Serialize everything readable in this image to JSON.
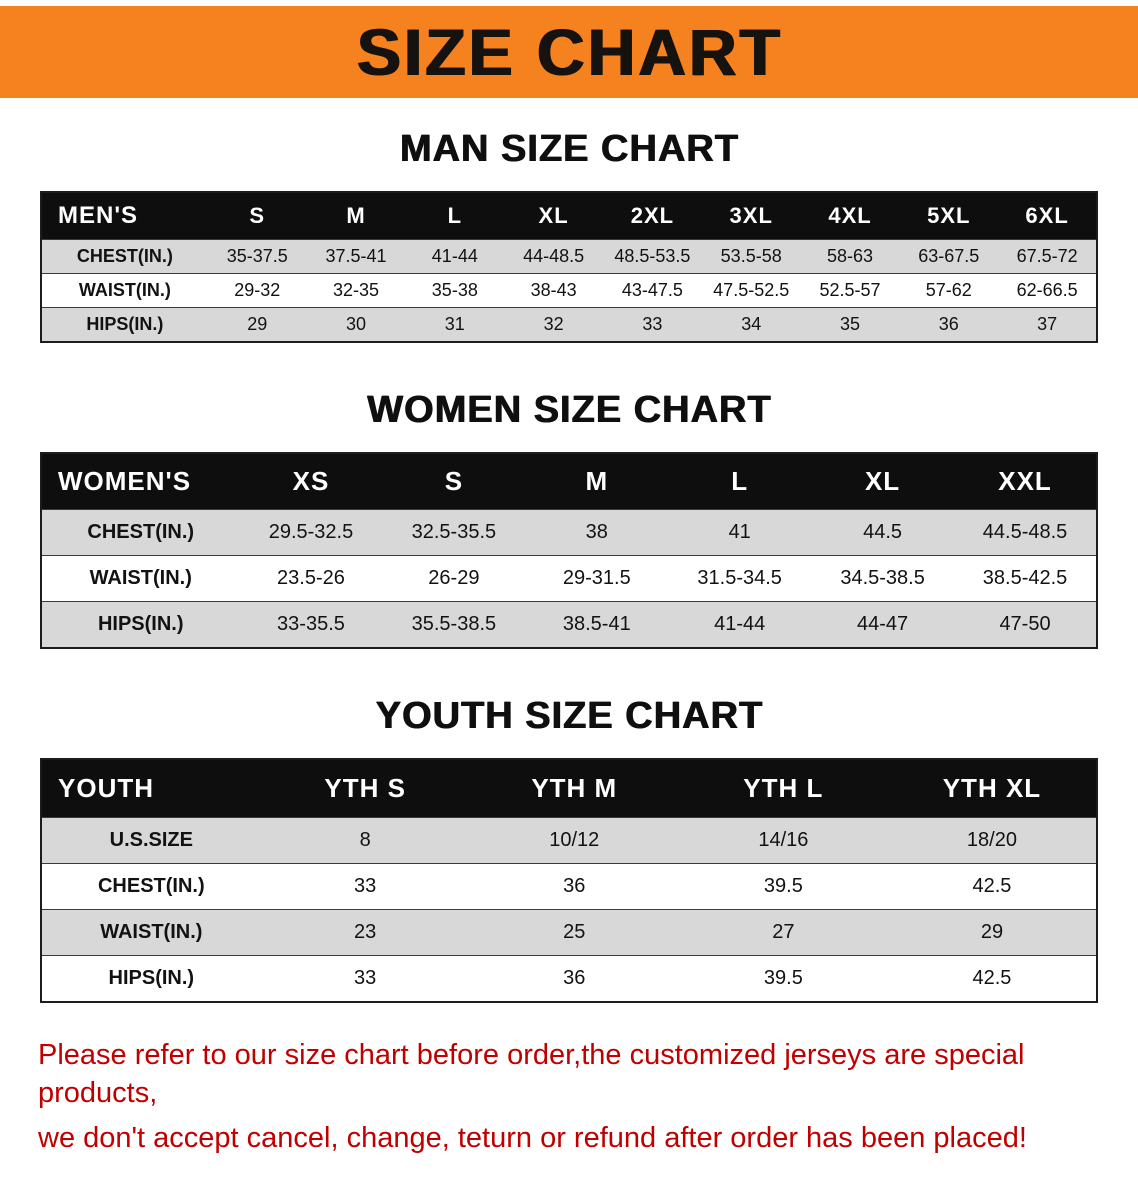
{
  "banner": {
    "title": "SIZE CHART",
    "background_color": "#f5821f",
    "text_color": "#151210"
  },
  "sections": [
    {
      "id": "men",
      "heading": "MAN SIZE CHART",
      "table": {
        "header": [
          "MEN'S",
          "S",
          "M",
          "L",
          "XL",
          "2XL",
          "3XL",
          "4XL",
          "5XL",
          "6XL"
        ],
        "rows": [
          [
            "CHEST(IN.)",
            "35-37.5",
            "37.5-41",
            "41-44",
            "44-48.5",
            "48.5-53.5",
            "53.5-58",
            "58-63",
            "63-67.5",
            "67.5-72"
          ],
          [
            "WAIST(IN.)",
            "29-32",
            "32-35",
            "35-38",
            "38-43",
            "43-47.5",
            "47.5-52.5",
            "52.5-57",
            "57-62",
            "62-66.5"
          ],
          [
            "HIPS(IN.)",
            "29",
            "30",
            "31",
            "32",
            "33",
            "34",
            "35",
            "36",
            "37"
          ]
        ]
      }
    },
    {
      "id": "women",
      "heading": "WOMEN SIZE CHART",
      "table": {
        "header": [
          "WOMEN'S",
          "XS",
          "S",
          "M",
          "L",
          "XL",
          "XXL"
        ],
        "rows": [
          [
            "CHEST(IN.)",
            "29.5-32.5",
            "32.5-35.5",
            "38",
            "41",
            "44.5",
            "44.5-48.5"
          ],
          [
            "WAIST(IN.)",
            "23.5-26",
            "26-29",
            "29-31.5",
            "31.5-34.5",
            "34.5-38.5",
            "38.5-42.5"
          ],
          [
            "HIPS(IN.)",
            "33-35.5",
            "35.5-38.5",
            "38.5-41",
            "41-44",
            "44-47",
            "47-50"
          ]
        ]
      }
    },
    {
      "id": "youth",
      "heading": "YOUTH SIZE CHART",
      "table": {
        "header": [
          "YOUTH",
          "YTH S",
          "YTH M",
          "YTH L",
          "YTH XL"
        ],
        "rows": [
          [
            "U.S.SIZE",
            "8",
            "10/12",
            "14/16",
            "18/20"
          ],
          [
            "CHEST(IN.)",
            "33",
            "36",
            "39.5",
            "42.5"
          ],
          [
            "WAIST(IN.)",
            "23",
            "25",
            "27",
            "29"
          ],
          [
            "HIPS(IN.)",
            "33",
            "36",
            "39.5",
            "42.5"
          ]
        ]
      }
    }
  ],
  "disclaimer": {
    "line1": "Please refer to our size chart before order,the customized jerseys are special products,",
    "line2": "we don't accept cancel, change, teturn or refund after order has been placed!",
    "text_color": "#c00000"
  },
  "row_stripe_color": "#d8d8d8",
  "table_header_bg": "#0e0e0e"
}
